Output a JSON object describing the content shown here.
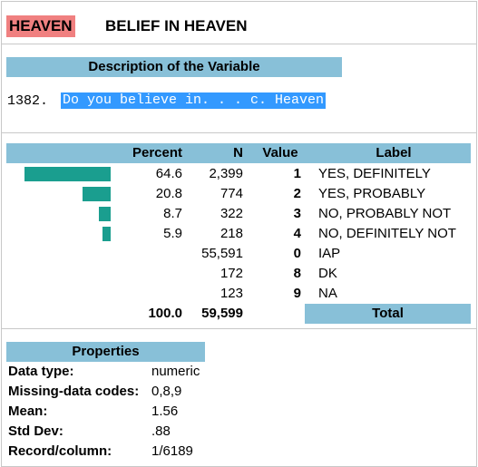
{
  "variable": {
    "tag": "HEAVEN",
    "title": "BELIEF IN HEAVEN"
  },
  "description": {
    "heading": "Description of the Variable",
    "number": "1382.",
    "question": "Do you believe in. . . c. Heaven"
  },
  "table": {
    "headers": {
      "percent": "Percent",
      "n": "N",
      "value": "Value",
      "label": "Label"
    },
    "rows": [
      {
        "percent": "64.6",
        "n": "2,399",
        "value": "1",
        "label": "YES, DEFINITELY",
        "bar": 64.6
      },
      {
        "percent": "20.8",
        "n": "774",
        "value": "2",
        "label": "YES, PROBABLY",
        "bar": 20.8
      },
      {
        "percent": "8.7",
        "n": "322",
        "value": "3",
        "label": "NO, PROBABLY NOT",
        "bar": 8.7
      },
      {
        "percent": "5.9",
        "n": "218",
        "value": "4",
        "label": "NO, DEFINITELY NOT",
        "bar": 5.9
      },
      {
        "percent": "",
        "n": "55,591",
        "value": "0",
        "label": "IAP",
        "bar": null
      },
      {
        "percent": "",
        "n": "172",
        "value": "8",
        "label": "DK",
        "bar": null
      },
      {
        "percent": "",
        "n": "123",
        "value": "9",
        "label": "NA",
        "bar": null
      }
    ],
    "total": {
      "percent": "100.0",
      "n": "59,599",
      "label": "Total"
    },
    "bar_color": "#1a9e8f"
  },
  "properties": {
    "heading": "Properties",
    "items": [
      {
        "label": "Data type:",
        "value": "numeric"
      },
      {
        "label": "Missing-data codes:",
        "value": "0,8,9"
      },
      {
        "label": "Mean:",
        "value": "1.56"
      },
      {
        "label": "Std Dev:",
        "value": ".88"
      },
      {
        "label": "Record/column:",
        "value": "1/6189"
      }
    ]
  },
  "colors": {
    "accent": "#88c0d8",
    "tag": "#f08080",
    "highlight": "#3399ff"
  }
}
